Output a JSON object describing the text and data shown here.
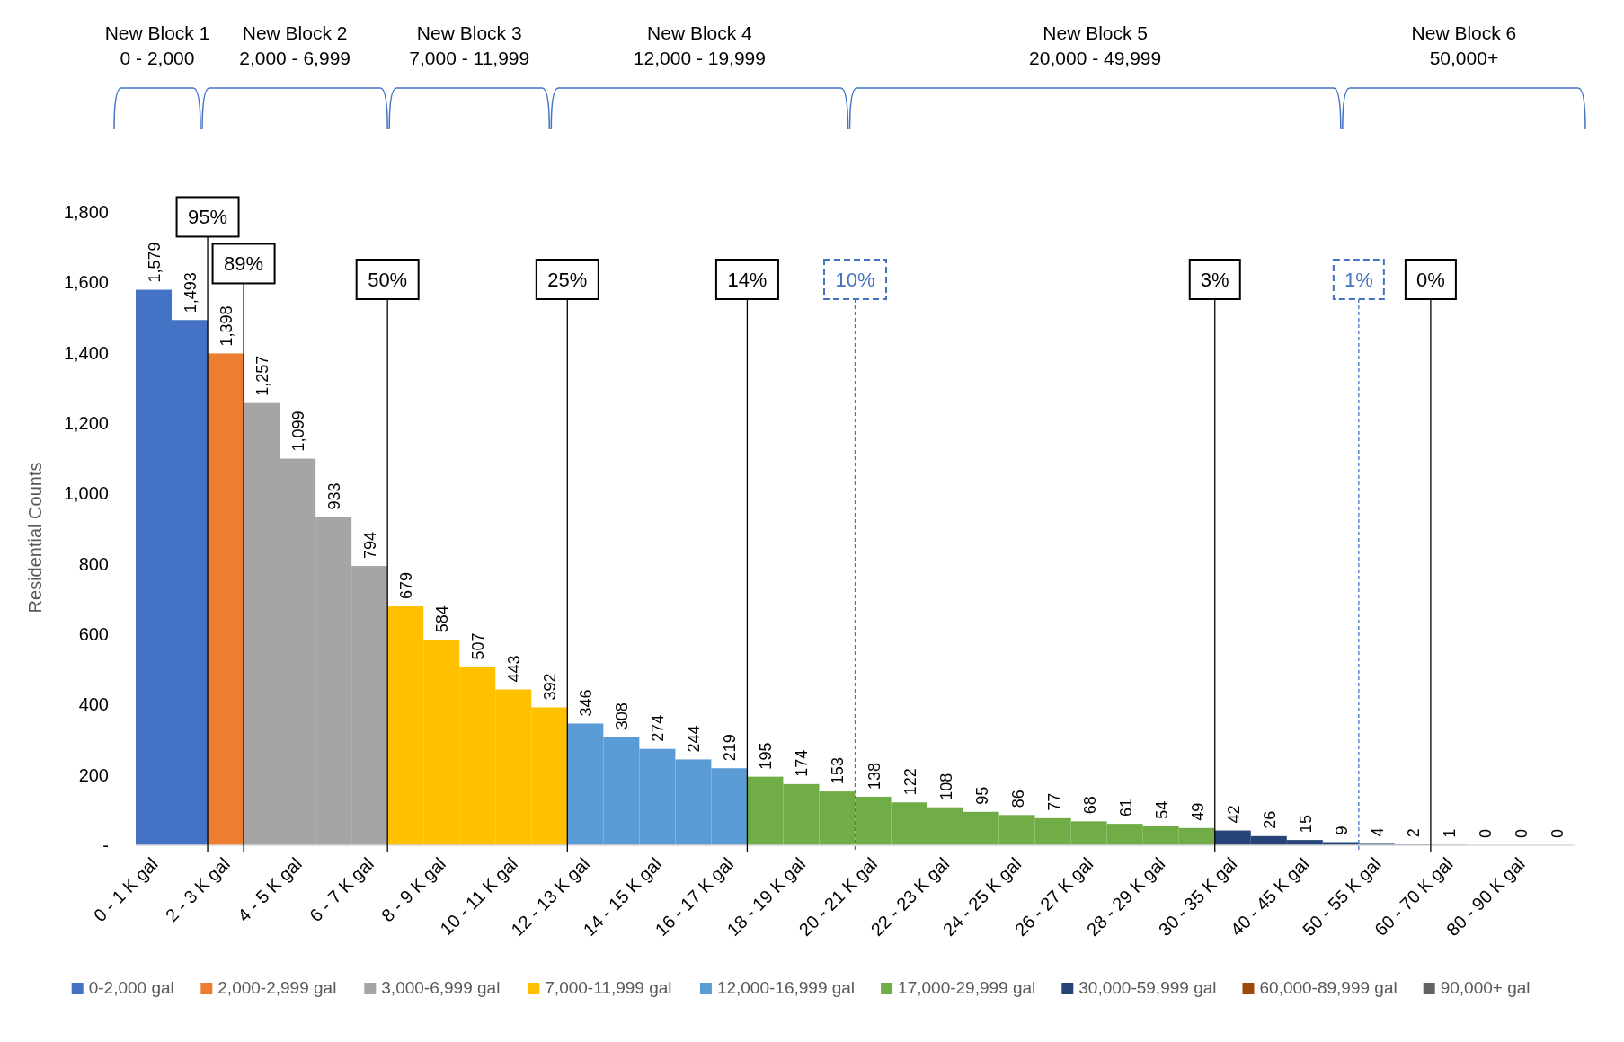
{
  "chart_data": {
    "type": "bar",
    "ylabel": "Residential Counts",
    "legend": "bottom",
    "grid": false,
    "categories": [
      "0 - 1 K gal",
      null,
      "2 - 3 K gal",
      null,
      "4 - 5 K gal",
      null,
      "6 - 7 K gal",
      null,
      "8 - 9 K gal",
      null,
      "10 - 11 K gal",
      null,
      "12 - 13 K gal",
      null,
      "14 - 15 K gal",
      null,
      "16 - 17 K gal",
      null,
      "18 - 19 K gal",
      null,
      "20 - 21 K gal",
      null,
      "22 - 23 K gal",
      null,
      "24 - 25 K gal",
      null,
      "26 - 27 K gal",
      null,
      "28 - 29 K gal",
      null,
      "30 - 35 K gal",
      null,
      "40 - 45 K gal",
      null,
      "50 - 55 K gal",
      null,
      "60 - 70 K gal",
      null,
      "80 - 90 K gal",
      null
    ],
    "ylim": [
      0,
      1800
    ],
    "yticks": [
      {
        "value": 0,
        "label": "-"
      },
      200,
      400,
      600,
      800,
      {
        "value": 1000,
        "label": "1,000"
      },
      {
        "value": 1200,
        "label": "1,200"
      },
      {
        "value": 1400,
        "label": "1,400"
      },
      {
        "value": 1600,
        "label": "1,600"
      },
      {
        "value": 1800,
        "label": "1,800"
      }
    ],
    "series": [
      {
        "name": "0-2,000 gal",
        "color": "#4472c4",
        "values": [
          1579,
          1493,
          null,
          null,
          null,
          null,
          null,
          null,
          null,
          null,
          null,
          null,
          null,
          null,
          null,
          null,
          null,
          null,
          null,
          null,
          null,
          null,
          null,
          null,
          null,
          null,
          null,
          null,
          null,
          null,
          null,
          null,
          null,
          null,
          null,
          null,
          null,
          null,
          null,
          null
        ],
        "value_labels": [
          "1,579",
          "1,493",
          null,
          null,
          null,
          null,
          null,
          null,
          null,
          null,
          null,
          null,
          null,
          null,
          null,
          null,
          null,
          null,
          null,
          null,
          null,
          null,
          null,
          null,
          null,
          null,
          null,
          null,
          null,
          null,
          null,
          null,
          null,
          null,
          null,
          null,
          null,
          null,
          null,
          null
        ]
      },
      {
        "name": "2,000-2,999 gal",
        "color": "#ed7d31",
        "values": [
          null,
          null,
          1398,
          null,
          null,
          null,
          null,
          null,
          null,
          null,
          null,
          null,
          null,
          null,
          null,
          null,
          null,
          null,
          null,
          null,
          null,
          null,
          null,
          null,
          null,
          null,
          null,
          null,
          null,
          null,
          null,
          null,
          null,
          null,
          null,
          null,
          null,
          null,
          null,
          null
        ],
        "value_labels": [
          null,
          null,
          "1,398",
          null,
          null,
          null,
          null,
          null,
          null,
          null,
          null,
          null,
          null,
          null,
          null,
          null,
          null,
          null,
          null,
          null,
          null,
          null,
          null,
          null,
          null,
          null,
          null,
          null,
          null,
          null,
          null,
          null,
          null,
          null,
          null,
          null,
          null,
          null,
          null,
          null
        ]
      },
      {
        "name": "3,000-6,999 gal",
        "color": "#a5a5a5",
        "values": [
          null,
          null,
          null,
          1257,
          1099,
          933,
          794,
          null,
          null,
          null,
          null,
          null,
          null,
          null,
          null,
          null,
          null,
          null,
          null,
          null,
          null,
          null,
          null,
          null,
          null,
          null,
          null,
          null,
          null,
          null,
          null,
          null,
          null,
          null,
          null,
          null,
          null,
          null,
          null,
          null
        ],
        "value_labels": [
          null,
          null,
          null,
          "1,257",
          "1,099",
          "933",
          "794",
          null,
          null,
          null,
          null,
          null,
          null,
          null,
          null,
          null,
          null,
          null,
          null,
          null,
          null,
          null,
          null,
          null,
          null,
          null,
          null,
          null,
          null,
          null,
          null,
          null,
          null,
          null,
          null,
          null,
          null,
          null,
          null,
          null
        ]
      },
      {
        "name": "7,000-11,999 gal",
        "color": "#ffc000",
        "values": [
          null,
          null,
          null,
          null,
          null,
          null,
          null,
          679,
          584,
          507,
          443,
          392,
          null,
          null,
          null,
          null,
          null,
          null,
          null,
          null,
          null,
          null,
          null,
          null,
          null,
          null,
          null,
          null,
          null,
          null,
          null,
          null,
          null,
          null,
          null,
          null,
          null,
          null,
          null,
          null
        ],
        "value_labels": [
          null,
          null,
          null,
          null,
          null,
          null,
          null,
          "679",
          "584",
          "507",
          "443",
          "392",
          null,
          null,
          null,
          null,
          null,
          null,
          null,
          null,
          null,
          null,
          null,
          null,
          null,
          null,
          null,
          null,
          null,
          null,
          null,
          null,
          null,
          null,
          null,
          null,
          null,
          null,
          null,
          null
        ]
      },
      {
        "name": "12,000-16,999 gal",
        "color": "#5b9bd5",
        "values": [
          null,
          null,
          null,
          null,
          null,
          null,
          null,
          null,
          null,
          null,
          null,
          null,
          346,
          308,
          274,
          244,
          219,
          null,
          null,
          null,
          null,
          null,
          null,
          null,
          null,
          null,
          null,
          null,
          null,
          null,
          null,
          null,
          null,
          null,
          null,
          null,
          null,
          null,
          null,
          null
        ],
        "value_labels": [
          null,
          null,
          null,
          null,
          null,
          null,
          null,
          null,
          null,
          null,
          null,
          null,
          "346",
          "308",
          "274",
          "244",
          "219",
          null,
          null,
          null,
          null,
          null,
          null,
          null,
          null,
          null,
          null,
          null,
          null,
          null,
          null,
          null,
          null,
          null,
          null,
          null,
          null,
          null,
          null,
          null
        ]
      },
      {
        "name": "17,000-29,999 gal",
        "color": "#70ad47",
        "values": [
          null,
          null,
          null,
          null,
          null,
          null,
          null,
          null,
          null,
          null,
          null,
          null,
          null,
          null,
          null,
          null,
          null,
          195,
          174,
          153,
          138,
          122,
          108,
          95,
          86,
          77,
          68,
          61,
          54,
          49,
          null,
          null,
          null,
          null,
          null,
          null,
          null,
          null,
          null,
          null
        ],
        "value_labels": [
          null,
          null,
          null,
          null,
          null,
          null,
          null,
          null,
          null,
          null,
          null,
          null,
          null,
          null,
          null,
          null,
          null,
          "195",
          "174",
          "153",
          "138",
          "122",
          "108",
          "95",
          "86",
          "77",
          "68",
          "61",
          "54",
          "49",
          null,
          null,
          null,
          null,
          null,
          null,
          null,
          null,
          null,
          null
        ]
      },
      {
        "name": "30,000-59,999 gal",
        "color": "#264478",
        "values": [
          null,
          null,
          null,
          null,
          null,
          null,
          null,
          null,
          null,
          null,
          null,
          null,
          null,
          null,
          null,
          null,
          null,
          null,
          null,
          null,
          null,
          null,
          null,
          null,
          null,
          null,
          null,
          null,
          null,
          null,
          42,
          26,
          15,
          9,
          4,
          2,
          null,
          null,
          null,
          null
        ],
        "value_labels": [
          null,
          null,
          null,
          null,
          null,
          null,
          null,
          null,
          null,
          null,
          null,
          null,
          null,
          null,
          null,
          null,
          null,
          null,
          null,
          null,
          null,
          null,
          null,
          null,
          null,
          null,
          null,
          null,
          null,
          null,
          "42",
          "26",
          "15",
          "9",
          "4",
          "2",
          null,
          null,
          null,
          null
        ]
      },
      {
        "name": "60,000-89,999 gal",
        "color": "#9e480e",
        "values": [
          null,
          null,
          null,
          null,
          null,
          null,
          null,
          null,
          null,
          null,
          null,
          null,
          null,
          null,
          null,
          null,
          null,
          null,
          null,
          null,
          null,
          null,
          null,
          null,
          null,
          null,
          null,
          null,
          null,
          null,
          null,
          null,
          null,
          null,
          null,
          null,
          1,
          0,
          0,
          null
        ],
        "value_labels": [
          null,
          null,
          null,
          null,
          null,
          null,
          null,
          null,
          null,
          null,
          null,
          null,
          null,
          null,
          null,
          null,
          null,
          null,
          null,
          null,
          null,
          null,
          null,
          null,
          null,
          null,
          null,
          null,
          null,
          null,
          null,
          null,
          null,
          null,
          null,
          null,
          "1",
          "0",
          "0",
          null
        ]
      },
      {
        "name": "90,000+ gal",
        "color": "#636363",
        "values": [
          null,
          null,
          null,
          null,
          null,
          null,
          null,
          null,
          null,
          null,
          null,
          null,
          null,
          null,
          null,
          null,
          null,
          null,
          null,
          null,
          null,
          null,
          null,
          null,
          null,
          null,
          null,
          null,
          null,
          null,
          null,
          null,
          null,
          null,
          null,
          null,
          null,
          null,
          null,
          0
        ],
        "value_labels": [
          null,
          null,
          null,
          null,
          null,
          null,
          null,
          null,
          null,
          null,
          null,
          null,
          null,
          null,
          null,
          null,
          null,
          null,
          null,
          null,
          null,
          null,
          null,
          null,
          null,
          null,
          null,
          null,
          null,
          null,
          null,
          null,
          null,
          null,
          null,
          null,
          null,
          null,
          null,
          "0"
        ]
      }
    ],
    "annotations": [
      "New Block 1\n0 - 2,000",
      "New Block 2\n2,000 - 6,999",
      "New Block 3\n7,000 - 11,999",
      "New Block 4\n12,000 - 19,999",
      "New Block 5\n20,000 - 49,999",
      "New Block 6\n50,000+",
      "95%",
      "89%",
      "50%",
      "25%",
      "14%",
      "10%",
      "3%",
      "1%",
      "0%"
    ]
  }
}
